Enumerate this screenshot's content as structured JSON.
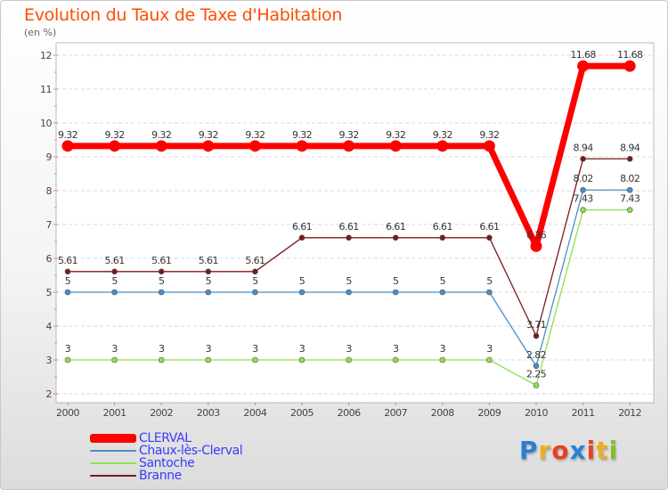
{
  "chart_data": {
    "type": "line",
    "title": "Evolution du Taux de Taxe d'Habitation",
    "ylabel": "(en %)",
    "xlabel": "",
    "x": [
      "2000",
      "2001",
      "2002",
      "2003",
      "2004",
      "2005",
      "2006",
      "2007",
      "2008",
      "2009",
      "2010",
      "2011",
      "2012"
    ],
    "ylim": [
      2,
      12
    ],
    "yticks": [
      "2",
      "3",
      "4",
      "5",
      "6",
      "7",
      "8",
      "9",
      "10",
      "11",
      "12"
    ],
    "series": [
      {
        "name": "CLERVAL",
        "color": "#ff0000",
        "values": [
          9.32,
          9.32,
          9.32,
          9.32,
          9.32,
          9.32,
          9.32,
          9.32,
          9.32,
          9.32,
          6.36,
          11.68,
          11.68
        ],
        "labels": [
          "9.32",
          "9.32",
          "9.32",
          "9.32",
          "9.32",
          "9.32",
          "9.32",
          "9.32",
          "9.32",
          "9.32",
          "6.36",
          "11.68",
          "11.68"
        ]
      },
      {
        "name": "Chaux-lès-Clerval",
        "color": "#4a8ec8",
        "values": [
          5,
          5,
          5,
          5,
          5,
          5,
          5,
          5,
          5,
          5,
          2.82,
          8.02,
          8.02
        ],
        "labels": [
          "5",
          "5",
          "5",
          "5",
          "5",
          "5",
          "5",
          "5",
          "5",
          "5",
          "2.82",
          "8.02",
          "8.02"
        ]
      },
      {
        "name": "Santoche",
        "color": "#8fe050",
        "values": [
          3,
          3,
          3,
          3,
          3,
          3,
          3,
          3,
          3,
          3,
          2.25,
          7.43,
          7.43
        ],
        "labels": [
          "3",
          "3",
          "3",
          "3",
          "3",
          "3",
          "3",
          "3",
          "3",
          "3",
          "2.25",
          "7.43",
          "7.43"
        ]
      },
      {
        "name": "Branne",
        "color": "#7a1a1a",
        "values": [
          5.61,
          5.61,
          5.61,
          5.61,
          5.61,
          6.61,
          6.61,
          6.61,
          6.61,
          6.61,
          3.71,
          8.94,
          8.94
        ],
        "labels": [
          "5.61",
          "5.61",
          "5.61",
          "5.61",
          "5.61",
          "6.61",
          "6.61",
          "6.61",
          "6.61",
          "6.61",
          "3.71",
          "8.94",
          "8.94"
        ]
      }
    ],
    "legend_position": "bottom-left"
  },
  "brand": {
    "letters": [
      "P",
      "r",
      "o",
      "x",
      "i",
      "t",
      "i"
    ],
    "colors": [
      "#2a7fd4",
      "#e8b020",
      "#e84020",
      "#2a7fd4",
      "#e84020",
      "#e8b020",
      "#80c020"
    ]
  }
}
